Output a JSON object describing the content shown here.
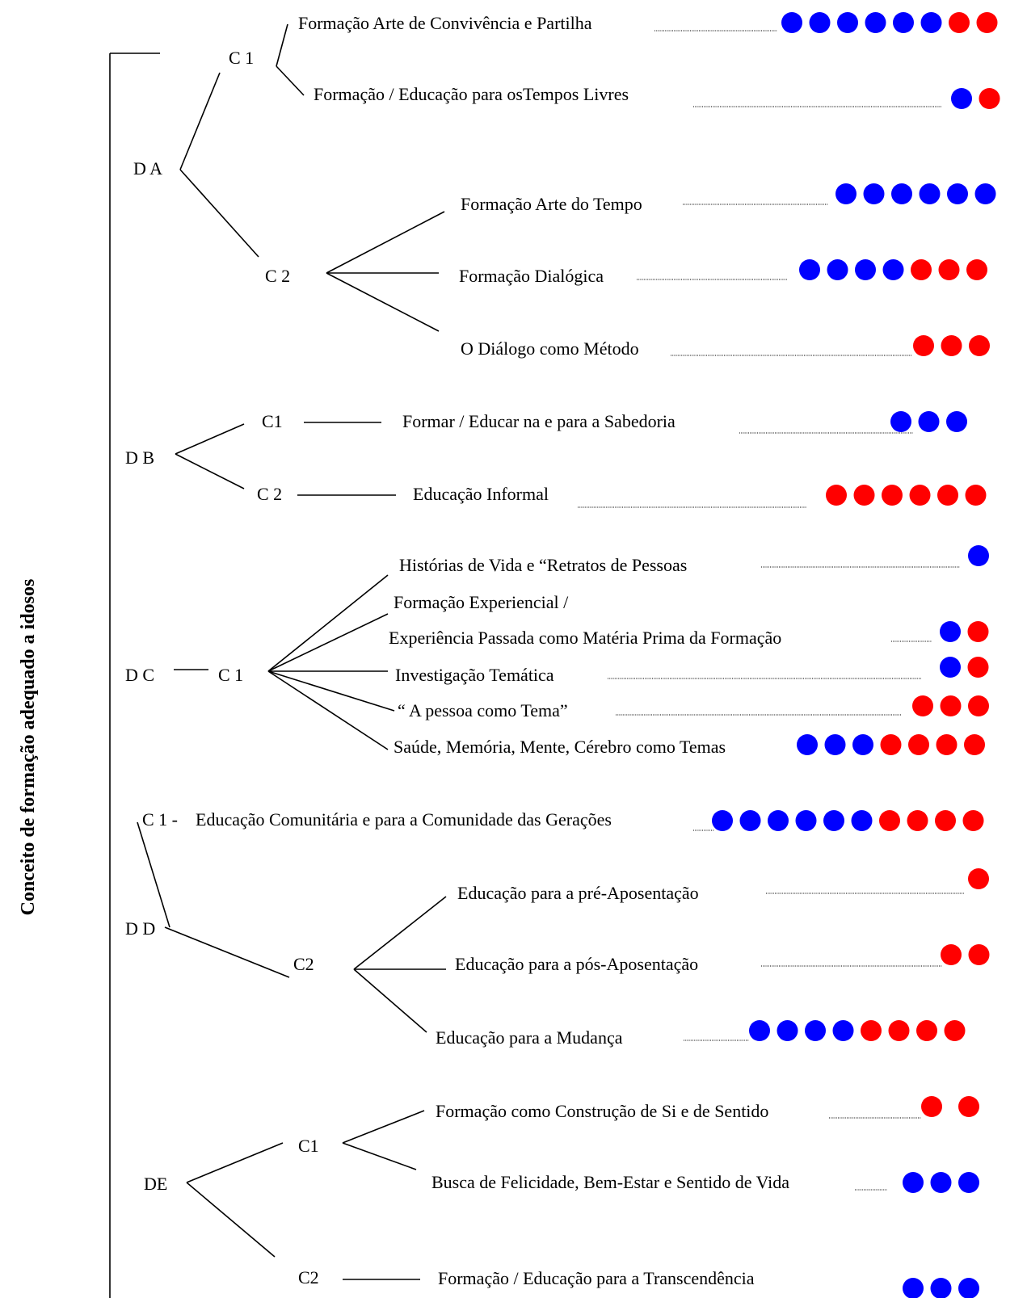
{
  "title": "Conceito de formação adequado a idosos",
  "colors": {
    "blue": "#0000ff",
    "red": "#ff0000"
  },
  "dimensions": [
    {
      "label": "D A",
      "categories": [
        {
          "label": "C 1",
          "items": [
            {
              "text": "Formação Arte de Convivência e Partilha",
              "dots": {
                "blue": 6,
                "red": 2
              }
            },
            {
              "text": "Formação /  Educação para osTempos Livres",
              "dots": {
                "blue": 1,
                "red": 1
              }
            }
          ]
        },
        {
          "label": "C 2",
          "items": [
            {
              "text": "Formação Arte do Tempo",
              "dots": {
                "blue": 6,
                "red": 0
              }
            },
            {
              "text": "Formação Dialógica",
              "dots": {
                "blue": 4,
                "red": 3
              }
            },
            {
              "text": "O Diálogo como Método",
              "dots": {
                "blue": 0,
                "red": 3
              }
            }
          ]
        }
      ]
    },
    {
      "label": "D B",
      "categories": [
        {
          "label": "C1",
          "items": [
            {
              "text": "Formar / Educar na e para a Sabedoria",
              "dots": {
                "blue": 3,
                "red": 0
              }
            }
          ]
        },
        {
          "label": "C 2",
          "items": [
            {
              "text": "Educação Informal",
              "dots": {
                "blue": 0,
                "red": 6
              }
            }
          ]
        }
      ]
    },
    {
      "label": "D C",
      "categories": [
        {
          "label": "C 1",
          "items": [
            {
              "text": "Histórias de Vida e “Retratos  de Pessoas",
              "dots": {
                "blue": 1,
                "red": 0
              }
            },
            {
              "text": "Formação Experiencial /",
              "text2": "Experiência Passada  como Matéria Prima da   Formação",
              "dots": {
                "blue": 1,
                "red": 1
              }
            },
            {
              "text": "Investigação Temática",
              "dots": {
                "blue": 1,
                "red": 1
              }
            },
            {
              "text": "“ A pessoa como Tema”",
              "dots": {
                "blue": 0,
                "red": 3
              }
            },
            {
              "text": "Saúde, Memória, Mente, Cérebro como Temas",
              "dots": {
                "blue": 3,
                "red": 4
              }
            }
          ]
        }
      ]
    },
    {
      "label": "D D",
      "categories": [
        {
          "label": "C 1 -",
          "items": [
            {
              "text": "Educação Comunitária e para a Comunidade das Gerações",
              "dots": {
                "blue": 6,
                "red": 4
              }
            }
          ]
        },
        {
          "label": "C2",
          "items": [
            {
              "text": "Educação para a pré-Aposentação",
              "dots": {
                "blue": 0,
                "red": 1
              }
            },
            {
              "text": "Educação para a pós-Aposentação",
              "dots": {
                "blue": 0,
                "red": 2
              }
            },
            {
              "text": "Educação para a Mudança",
              "dots": {
                "blue": 4,
                "red": 4
              }
            }
          ]
        }
      ]
    },
    {
      "label": "DE",
      "categories": [
        {
          "label": "C1",
          "items": [
            {
              "text": "Formação como Construção de Si e de Sentido",
              "dots": {
                "blue": 0,
                "red": 2
              }
            },
            {
              "text": "Busca de Felicidade, Bem-Estar e Sentido de Vida",
              "dots": {
                "blue": 3,
                "red": 0
              }
            }
          ]
        },
        {
          "label": "C2",
          "items": [
            {
              "text": "Formação / Educação para a Transcendência",
              "dots": {
                "blue": 3,
                "red": 0
              }
            }
          ]
        }
      ]
    }
  ]
}
